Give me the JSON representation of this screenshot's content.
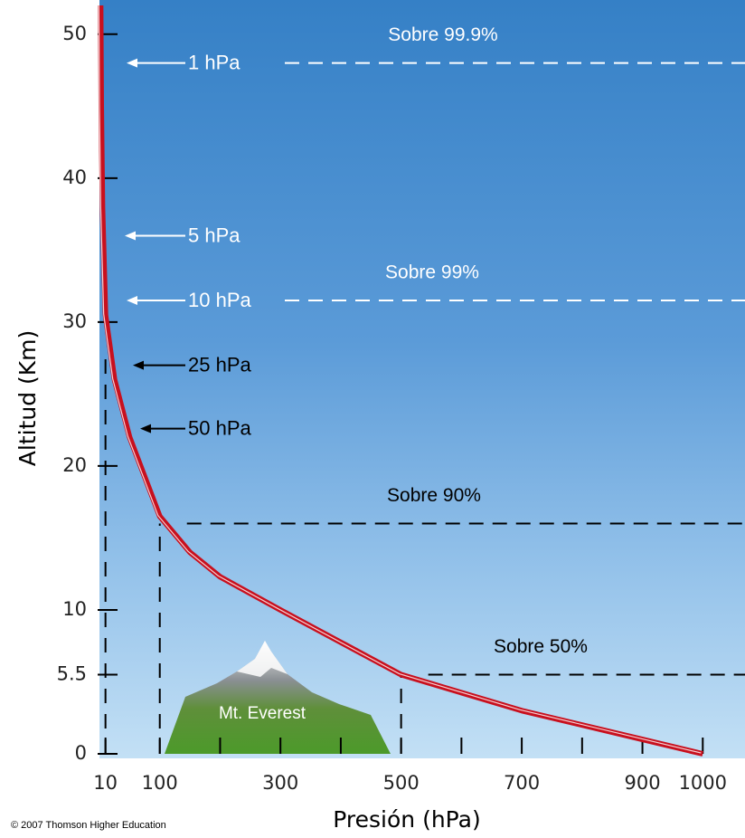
{
  "chart_data": {
    "type": "line",
    "xlabel": "Presión (hPa)",
    "ylabel": "Altitud (Km)",
    "credit": "© 2007 Thomson Higher Education",
    "xlim": [
      0,
      1070
    ],
    "ylim": [
      0,
      52
    ],
    "xticks": [
      10,
      100,
      300,
      500,
      700,
      900,
      1000
    ],
    "xminorticks": [
      200,
      400,
      600,
      800
    ],
    "yticks": [
      0,
      5.5,
      10,
      20,
      30,
      40,
      50
    ],
    "x": [
      2,
      3,
      5,
      10,
      25,
      50,
      100,
      150,
      200,
      300,
      500,
      700,
      900,
      1000
    ],
    "series": [
      {
        "color": "#c8101e",
        "values": [
          52,
          45,
          38,
          30.5,
          26,
          22,
          16.5,
          14,
          12.3,
          10,
          5.5,
          3,
          1,
          0
        ]
      }
    ],
    "arrows": [
      {
        "text": "1 hPa",
        "altitude": 48,
        "color": "#ffffff"
      },
      {
        "text": "5 hPa",
        "altitude": 36,
        "color": "#ffffff"
      },
      {
        "text": "10 hPa",
        "altitude": 31.5,
        "color": "#ffffff"
      },
      {
        "text": "25 hPa",
        "altitude": 27,
        "color": "#000000"
      },
      {
        "text": "50 hPa",
        "altitude": 22.6,
        "color": "#000000"
      }
    ],
    "levels": [
      {
        "text": "Sobre 99.9%",
        "altitude": 48,
        "color": "#ffffff"
      },
      {
        "text": "Sobre 99%",
        "altitude": 31.5,
        "pressure": 10,
        "color": "#ffffff"
      },
      {
        "text": "Sobre 90%",
        "altitude": 16,
        "pressure": 100,
        "color": "#000000"
      },
      {
        "text": "Sobre 50%",
        "altitude": 5.5,
        "pressure": 500,
        "color": "#000000"
      }
    ],
    "mountain": {
      "label": "Mt. Everest"
    }
  }
}
